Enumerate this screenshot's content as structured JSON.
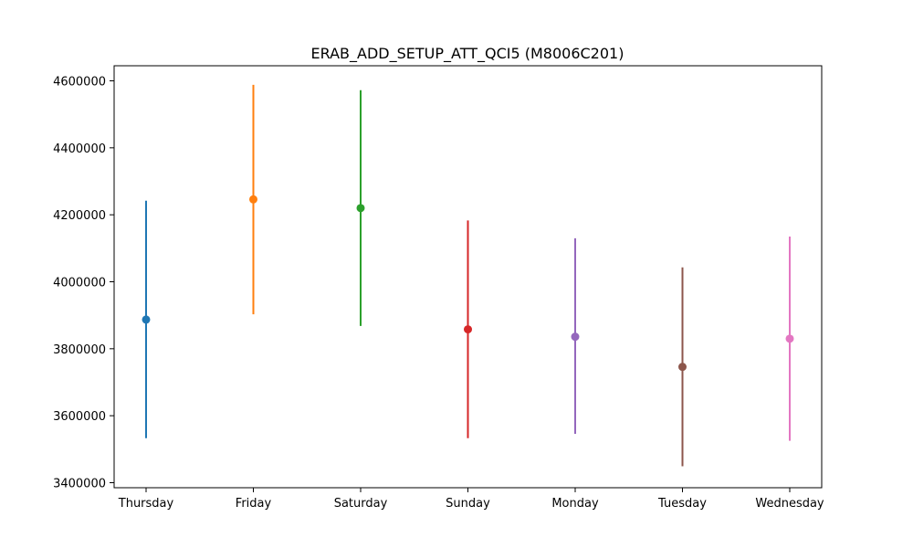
{
  "chart_data": {
    "type": "scatter",
    "title": "ERAB_ADD_SETUP_ATT_QCI5 (M8006C201)",
    "xlabel": "",
    "ylabel": "",
    "categories": [
      "Thursday",
      "Friday",
      "Saturday",
      "Sunday",
      "Monday",
      "Tuesday",
      "Wednesday"
    ],
    "series": [
      {
        "category": "Thursday",
        "mean": 3887000,
        "low": 3533000,
        "high": 4242000,
        "color": "#1f77b4"
      },
      {
        "category": "Friday",
        "mean": 4246000,
        "low": 3903000,
        "high": 4588000,
        "color": "#ff7f0e"
      },
      {
        "category": "Saturday",
        "mean": 4220000,
        "low": 3868000,
        "high": 4572000,
        "color": "#2ca02c"
      },
      {
        "category": "Sunday",
        "mean": 3858000,
        "low": 3533000,
        "high": 4183000,
        "color": "#d62728"
      },
      {
        "category": "Monday",
        "mean": 3836000,
        "low": 3546000,
        "high": 4130000,
        "color": "#9467bd"
      },
      {
        "category": "Tuesday",
        "mean": 3746000,
        "low": 3449000,
        "high": 4043000,
        "color": "#8c564b"
      },
      {
        "category": "Wednesday",
        "mean": 3830000,
        "low": 3525000,
        "high": 4135000,
        "color": "#e377c2"
      }
    ],
    "yticks": [
      "3400000",
      "3600000",
      "3800000",
      "4000000",
      "4200000",
      "4400000",
      "4600000"
    ],
    "ylim": [
      3385000,
      4645000
    ],
    "grid": false,
    "legend": "none"
  }
}
